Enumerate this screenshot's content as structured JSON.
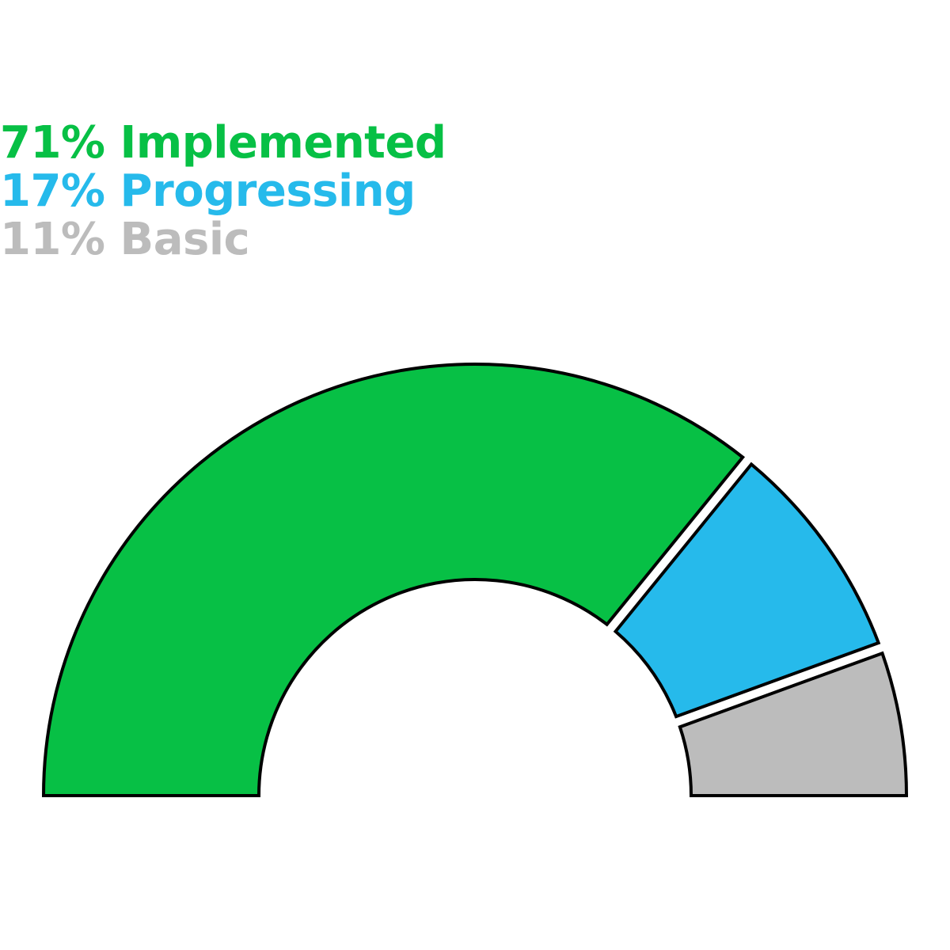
{
  "chart_data": {
    "type": "pie",
    "variant": "half-donut",
    "series": [
      {
        "name": "Implemented",
        "value": 71,
        "label": "71% Implemented",
        "color": "#07c045"
      },
      {
        "name": "Progressing",
        "value": 17,
        "label": "17% Progressing",
        "color": "#26baeb"
      },
      {
        "name": "Basic",
        "value": 11,
        "label": "11% Basic",
        "color": "#bcbcbc"
      }
    ],
    "legend_position": "top-left",
    "outline_color": "#000000"
  }
}
